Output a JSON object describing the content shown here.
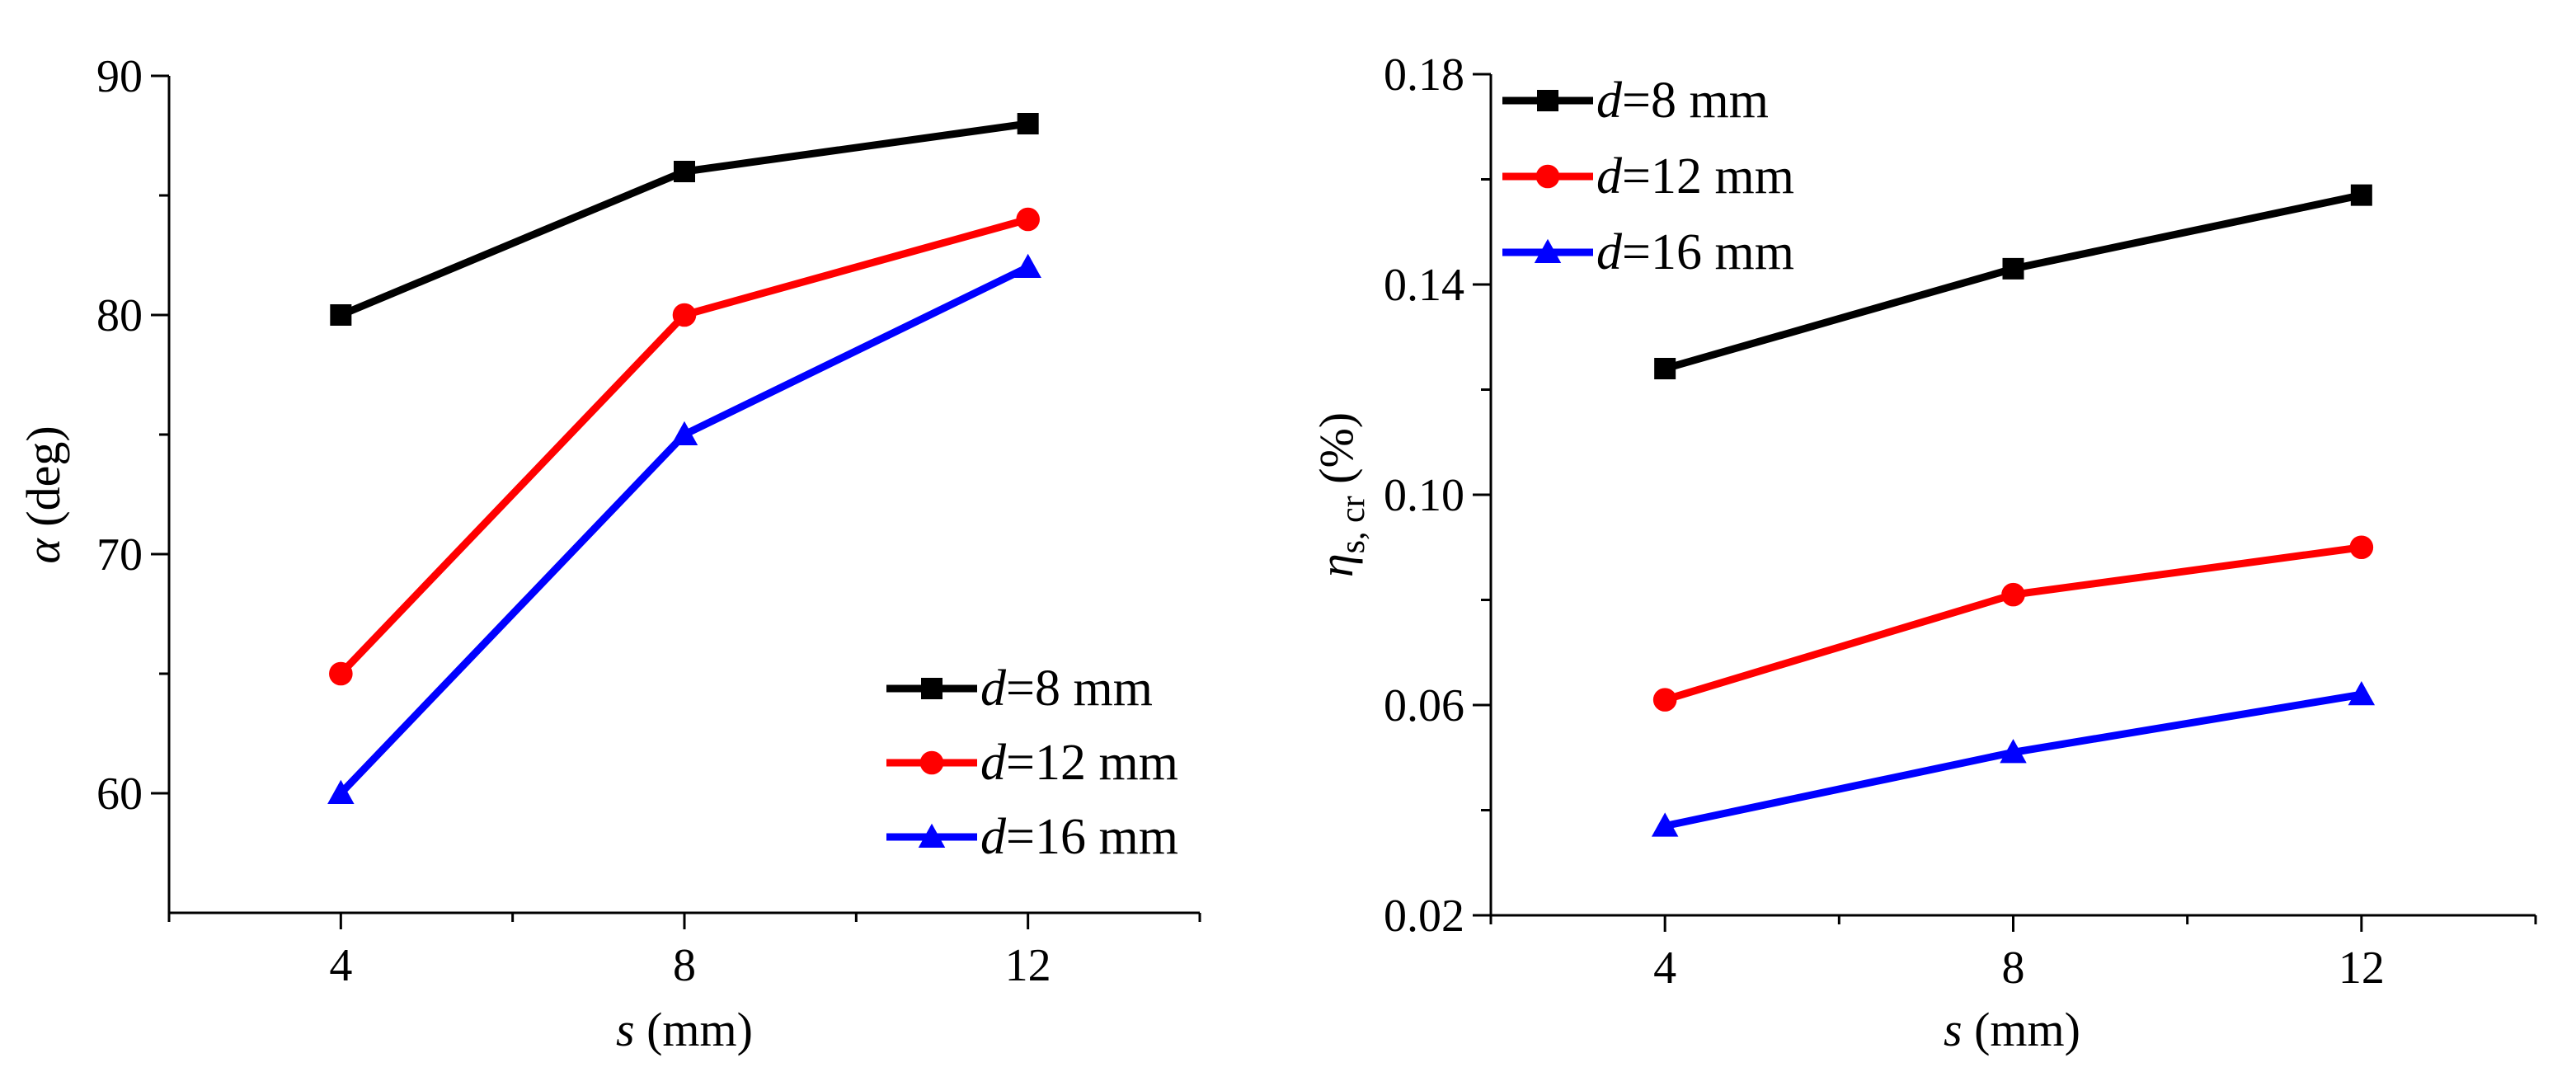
{
  "chart_data": [
    {
      "type": "line",
      "x": [
        4,
        8,
        12
      ],
      "xlim": [
        2,
        14
      ],
      "xticks": [
        "4",
        "8",
        "12"
      ],
      "ylim": [
        55,
        90
      ],
      "yticks": [
        "60",
        "70",
        "80",
        "90"
      ],
      "xlabel": {
        "sym": "s",
        "unit": " (mm)"
      },
      "ylabel": {
        "sym": "α",
        "unit": " (deg)"
      },
      "legend_position": "bottom-right",
      "series": [
        {
          "name": "d=8 mm",
          "sym": "d",
          "rest": "=8 mm",
          "color": "#000000",
          "marker": "square",
          "values": [
            80,
            86,
            88
          ]
        },
        {
          "name": "d=12 mm",
          "sym": "d",
          "rest": "=12 mm",
          "color": "#ff0000",
          "marker": "circle",
          "values": [
            65,
            80,
            84
          ]
        },
        {
          "name": "d=16 mm",
          "sym": "d",
          "rest": "=16 mm",
          "color": "#0000ff",
          "marker": "triangle",
          "values": [
            60,
            75,
            82
          ]
        }
      ]
    },
    {
      "type": "line",
      "x": [
        4,
        8,
        12
      ],
      "xlim": [
        2,
        14
      ],
      "xticks": [
        "4",
        "8",
        "12"
      ],
      "ylim": [
        0.02,
        0.18
      ],
      "yticks": [
        "0.02",
        "0.06",
        "0.10",
        "0.14",
        "0.18"
      ],
      "xlabel": {
        "sym": "s",
        "unit": " (mm)"
      },
      "ylabel": {
        "sym": "η",
        "sub": "s, cr",
        "unit": " (%)"
      },
      "legend_position": "top-left",
      "series": [
        {
          "name": "d=8 mm",
          "sym": "d",
          "rest": "=8 mm",
          "color": "#000000",
          "marker": "square",
          "values": [
            0.124,
            0.143,
            0.157
          ]
        },
        {
          "name": "d=12 mm",
          "sym": "d",
          "rest": "=12 mm",
          "color": "#ff0000",
          "marker": "circle",
          "values": [
            0.061,
            0.081,
            0.09
          ]
        },
        {
          "name": "d=16 mm",
          "sym": "d",
          "rest": "=16 mm",
          "color": "#0000ff",
          "marker": "triangle",
          "values": [
            0.037,
            0.051,
            0.062
          ]
        }
      ]
    }
  ]
}
